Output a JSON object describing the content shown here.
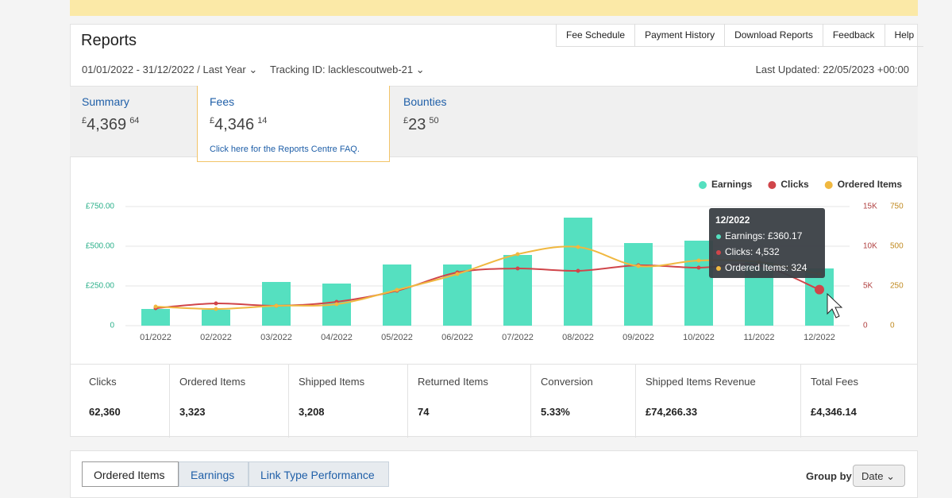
{
  "header": {
    "title": "Reports",
    "tabs": [
      "Fee Schedule",
      "Payment History",
      "Download Reports",
      "Feedback",
      "Help"
    ],
    "date_range": "01/01/2022 - 31/12/2022 / Last Year",
    "tracking_id": "Tracking ID: lacklescoutweb-21",
    "last_updated": "Last Updated: 22/05/2023 +00:00"
  },
  "summary": [
    {
      "name": "Summary",
      "currency": "£",
      "whole": "4,369",
      "fraction": "64"
    },
    {
      "name": "Fees",
      "currency": "£",
      "whole": "4,346",
      "fraction": "14"
    },
    {
      "name": "Bounties",
      "currency": "£",
      "whole": "23",
      "fraction": "50"
    }
  ],
  "faq_link": "Click here for the Reports Centre FAQ.",
  "chart_data": {
    "type": "bar_line",
    "categories": [
      "01/2022",
      "02/2022",
      "03/2022",
      "04/2022",
      "05/2022",
      "06/2022",
      "07/2022",
      "08/2022",
      "09/2022",
      "10/2022",
      "11/2022",
      "12/2022"
    ],
    "series": [
      {
        "name": "Earnings",
        "type": "bar",
        "color": "#55e0c0",
        "axis": "y",
        "values": [
          105,
          100,
          275,
          265,
          385,
          385,
          445,
          680,
          520,
          535,
          400,
          360.17
        ]
      },
      {
        "name": "Clicks",
        "type": "line",
        "color": "#d0454a",
        "axis": "y2",
        "values": [
          2200,
          2800,
          2500,
          3000,
          4400,
          6700,
          7200,
          6900,
          7600,
          7300,
          7600,
          4532
        ]
      },
      {
        "name": "Ordered Items",
        "type": "line",
        "color": "#f0b840",
        "axis": "y3",
        "values": [
          120,
          105,
          125,
          135,
          225,
          325,
          450,
          495,
          375,
          410,
          400,
          324
        ]
      }
    ],
    "ylim": [
      0,
      750
    ],
    "yticks": [
      0,
      {
        "value": 250,
        "label": "£250.00"
      },
      {
        "value": 500,
        "label": "£500.00"
      },
      {
        "value": 750,
        "label": "£750.00"
      }
    ],
    "y2lim": [
      0,
      15000
    ],
    "y2ticks": [
      0,
      {
        "value": 5000,
        "label": "5K"
      },
      {
        "value": 10000,
        "label": "10K"
      },
      {
        "value": 15000,
        "label": "15K"
      }
    ],
    "y3lim": [
      0,
      750
    ],
    "y3ticks": [
      0,
      250,
      500,
      750
    ],
    "grid": true,
    "legend": "top-right",
    "tooltip": {
      "title": "12/2022",
      "lines": [
        "Earnings: £360.17",
        "Clicks: 4,532",
        "Ordered Items: 324"
      ]
    }
  },
  "stats": [
    {
      "name": "Clicks",
      "value": "62,360"
    },
    {
      "name": "Ordered Items",
      "value": "3,323"
    },
    {
      "name": "Shipped Items",
      "value": "3,208"
    },
    {
      "name": "Returned Items",
      "value": "74"
    },
    {
      "name": "Conversion",
      "value": "5.33%"
    },
    {
      "name": "Shipped Items Revenue",
      "value": "£74,266.33"
    },
    {
      "name": "Total Fees",
      "value": "£4,346.14"
    }
  ],
  "bottom_tabs": [
    "Ordered Items",
    "Earnings",
    "Link Type Performance"
  ],
  "group_by": {
    "label": "Group by",
    "value": "Date"
  }
}
